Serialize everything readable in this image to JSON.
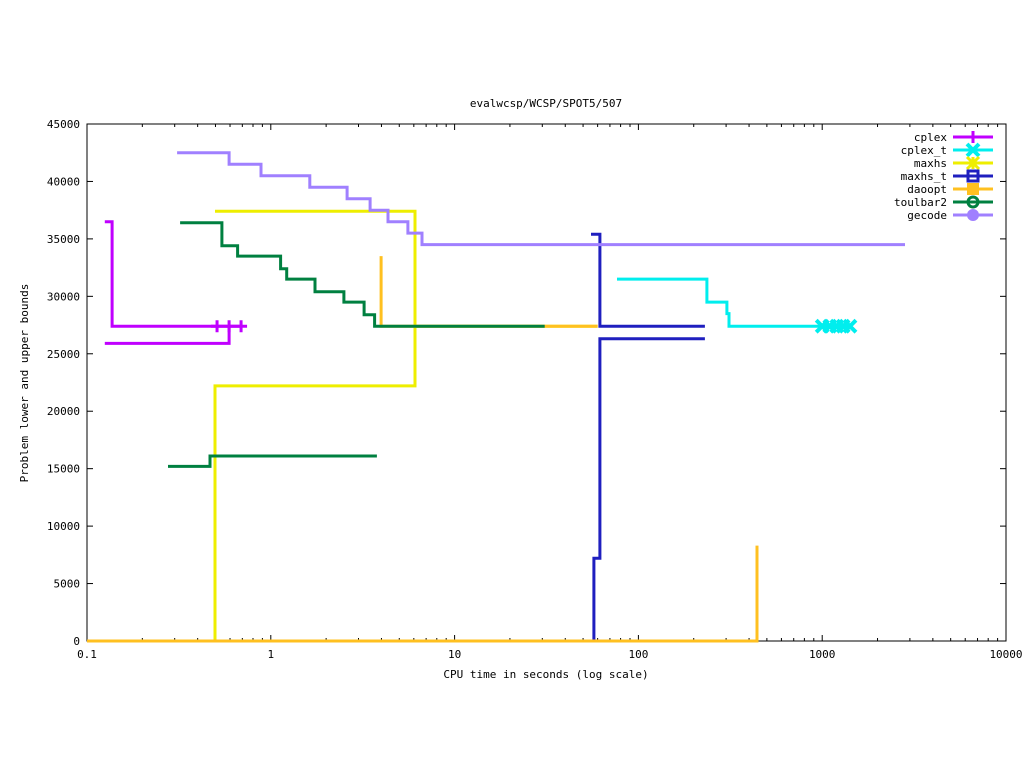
{
  "chart_data": {
    "type": "line",
    "title": "evalwcsp/WCSP/SPOT5/507",
    "xlabel": "CPU time in seconds (log scale)",
    "ylabel": "Problem lower and upper bounds",
    "xscale": "log",
    "xlim": [
      0.1,
      10000
    ],
    "ylim": [
      0,
      45000
    ],
    "xticks": [
      0.1,
      1,
      10,
      100,
      1000,
      10000
    ],
    "xtick_labels": [
      "0.1",
      "1",
      "10",
      "100",
      "1000",
      "10000"
    ],
    "yticks": [
      0,
      5000,
      10000,
      15000,
      20000,
      25000,
      30000,
      35000,
      40000,
      45000
    ],
    "ytick_labels": [
      "0",
      "5000",
      "10000",
      "15000",
      "20000",
      "25000",
      "30000",
      "35000",
      "40000",
      "45000"
    ],
    "grid": false,
    "legend_position": "top-right",
    "series": [
      {
        "name": "cplex",
        "color": "#c000ff",
        "marker": "plus",
        "upper": [
          [
            0.125,
            36500
          ],
          [
            0.137,
            36500
          ],
          [
            0.137,
            27400
          ],
          [
            0.689,
            27400
          ]
        ],
        "lower": [
          [
            0.125,
            25900
          ],
          [
            0.593,
            25900
          ],
          [
            0.593,
            27400
          ]
        ],
        "markers": [
          [
            0.51,
            27400
          ],
          [
            0.593,
            27400
          ],
          [
            0.689,
            27400
          ]
        ]
      },
      {
        "name": "cplex_t",
        "color": "#00eeee",
        "marker": "cross",
        "upper": [
          [
            76.5,
            31500
          ],
          [
            236,
            31500
          ],
          [
            236,
            29500
          ],
          [
            303,
            29500
          ],
          [
            303,
            28500
          ],
          [
            311,
            28500
          ],
          [
            311,
            27400
          ],
          [
            1416,
            27400
          ]
        ],
        "lower": [],
        "markers": [
          [
            1000,
            27400
          ],
          [
            1100,
            27400
          ],
          [
            1200,
            27400
          ],
          [
            1300,
            27400
          ],
          [
            1416,
            27400
          ]
        ]
      },
      {
        "name": "maxhs",
        "color": "#eeee00",
        "marker": "star",
        "upper": [
          [
            0.497,
            37400
          ],
          [
            6.09,
            37400
          ],
          [
            6.09,
            27400
          ],
          [
            60,
            27400
          ]
        ],
        "lower": [
          [
            0.1,
            0
          ],
          [
            0.497,
            0
          ],
          [
            0.497,
            22200
          ],
          [
            6.09,
            22200
          ],
          [
            6.09,
            27400
          ]
        ],
        "markers": []
      },
      {
        "name": "maxhs_t",
        "color": "#1f1fbf",
        "marker": "box",
        "upper": [
          [
            55.2,
            35400
          ],
          [
            61.7,
            35400
          ],
          [
            61.7,
            27400
          ],
          [
            230,
            27400
          ]
        ],
        "lower": [
          [
            57.3,
            0
          ],
          [
            57.3,
            7200
          ],
          [
            61.7,
            7200
          ],
          [
            61.7,
            26300
          ],
          [
            230,
            26300
          ]
        ],
        "markers": []
      },
      {
        "name": "daoopt",
        "color": "#ffc020",
        "marker": "filled-box",
        "upper": [
          [
            3.98,
            33500
          ],
          [
            3.98,
            27400
          ],
          [
            60,
            27400
          ]
        ],
        "lower": [
          [
            0.1,
            0
          ],
          [
            442,
            0
          ],
          [
            442,
            8300
          ]
        ],
        "markers": []
      },
      {
        "name": "toulbar2",
        "color": "#008040",
        "marker": "circle",
        "upper": [
          [
            0.321,
            36400
          ],
          [
            0.542,
            36400
          ],
          [
            0.542,
            34400
          ],
          [
            0.66,
            34400
          ],
          [
            0.66,
            33500
          ],
          [
            1.13,
            33500
          ],
          [
            1.13,
            32400
          ],
          [
            1.22,
            32400
          ],
          [
            1.22,
            31500
          ],
          [
            1.74,
            31500
          ],
          [
            1.74,
            30400
          ],
          [
            2.5,
            30400
          ],
          [
            2.5,
            29500
          ],
          [
            3.22,
            29500
          ],
          [
            3.22,
            28400
          ],
          [
            3.67,
            28400
          ],
          [
            3.67,
            27400
          ],
          [
            30.9,
            27400
          ]
        ],
        "lower": [
          [
            0.276,
            15200
          ],
          [
            0.467,
            15200
          ],
          [
            0.467,
            16100
          ],
          [
            3.78,
            16100
          ]
        ],
        "markers": []
      },
      {
        "name": "gecode",
        "color": "#a080ff",
        "marker": "filled-circle",
        "upper": [
          [
            0.309,
            42500
          ],
          [
            0.593,
            42500
          ],
          [
            0.593,
            41500
          ],
          [
            0.885,
            41500
          ],
          [
            0.885,
            40500
          ],
          [
            1.63,
            40500
          ],
          [
            1.63,
            39500
          ],
          [
            2.6,
            39500
          ],
          [
            2.6,
            38500
          ],
          [
            3.47,
            38500
          ],
          [
            3.47,
            37500
          ],
          [
            4.34,
            37500
          ],
          [
            4.34,
            36500
          ],
          [
            5.57,
            36500
          ],
          [
            5.57,
            35500
          ],
          [
            6.65,
            35500
          ],
          [
            6.65,
            34500
          ],
          [
            2820,
            34500
          ]
        ],
        "lower": [],
        "markers": []
      }
    ]
  }
}
